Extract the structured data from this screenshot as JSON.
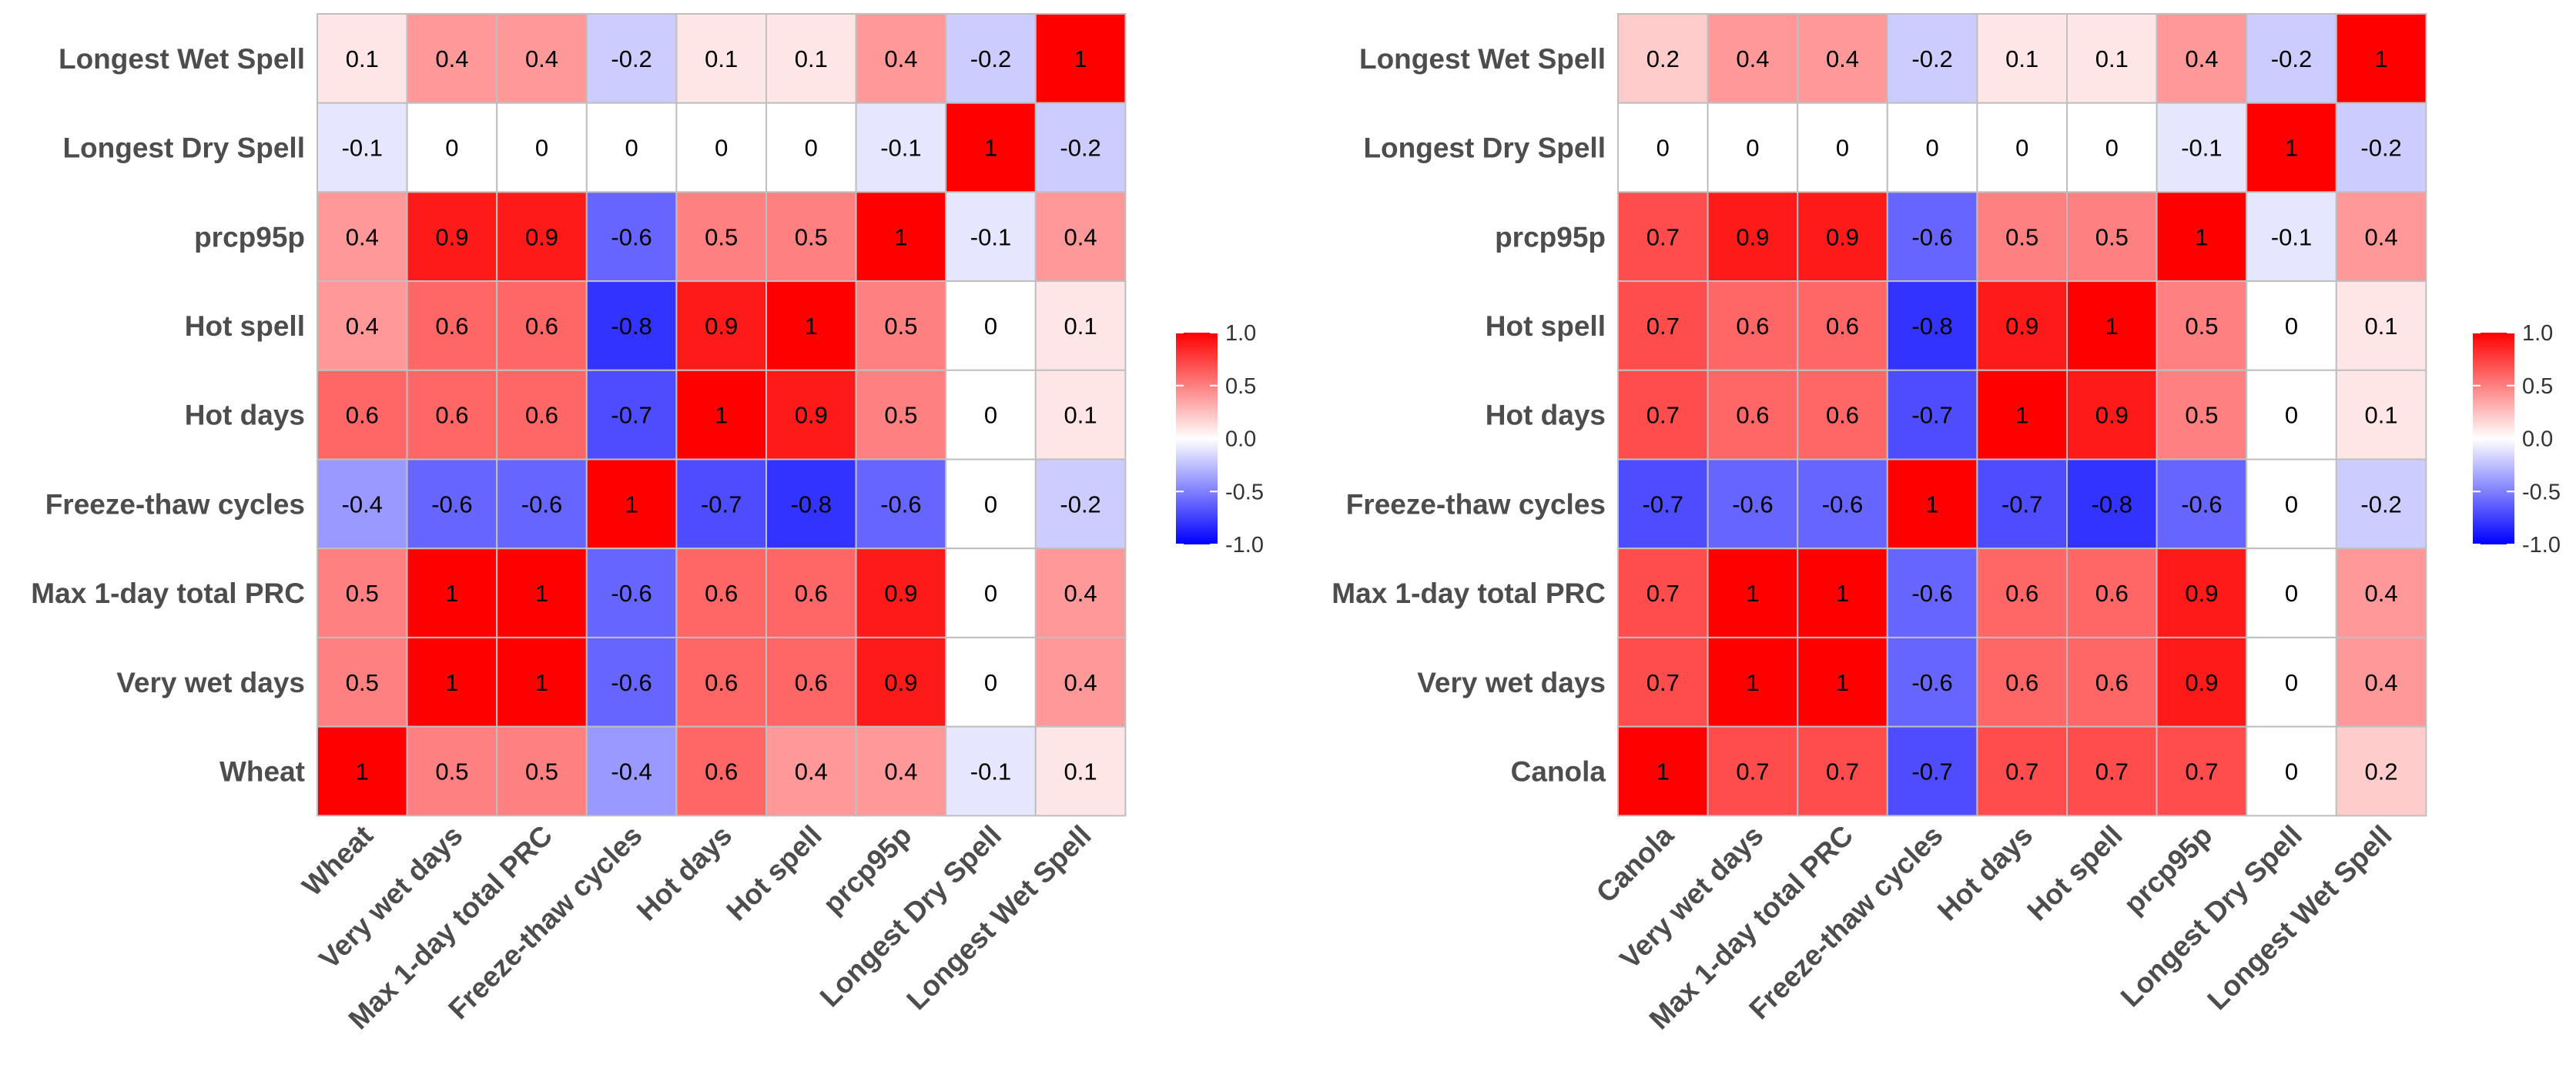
{
  "chart_data": [
    {
      "type": "heatmap",
      "title": "",
      "row_labels_top_to_bottom": [
        "Longest Wet Spell",
        "Longest Dry Spell",
        "prcp95p",
        "Hot spell",
        "Hot days",
        "Freeze-thaw cycles",
        "Max 1-day total PRC",
        "Very wet days",
        "Wheat"
      ],
      "col_labels": [
        "Wheat",
        "Very wet days",
        "Max 1-day total PRC",
        "Freeze-thaw cycles",
        "Hot days",
        "Hot spell",
        "prcp95p",
        "Longest Dry Spell",
        "Longest Wet Spell"
      ],
      "values": [
        [
          "0.1",
          "0.4",
          "0.4",
          "-0.2",
          "0.1",
          "0.1",
          "0.4",
          "-0.2",
          "1"
        ],
        [
          "-0.1",
          "0",
          "0",
          "0",
          "0",
          "0",
          "-0.1",
          "1",
          "-0.2"
        ],
        [
          "0.4",
          "0.9",
          "0.9",
          "-0.6",
          "0.5",
          "0.5",
          "1",
          "-0.1",
          "0.4"
        ],
        [
          "0.4",
          "0.6",
          "0.6",
          "-0.8",
          "0.9",
          "1",
          "0.5",
          "0",
          "0.1"
        ],
        [
          "0.6",
          "0.6",
          "0.6",
          "-0.7",
          "1",
          "0.9",
          "0.5",
          "0",
          "0.1"
        ],
        [
          "-0.4",
          "-0.6",
          "-0.6",
          "1",
          "-0.7",
          "-0.8",
          "-0.6",
          "0",
          "-0.2"
        ],
        [
          "0.5",
          "1",
          "1",
          "-0.6",
          "0.6",
          "0.6",
          "0.9",
          "0",
          "0.4"
        ],
        [
          "0.5",
          "1",
          "1",
          "-0.6",
          "0.6",
          "0.6",
          "0.9",
          "0",
          "0.4"
        ],
        [
          "1",
          "0.5",
          "0.5",
          "-0.4",
          "0.6",
          "0.4",
          "0.4",
          "-0.1",
          "0.1"
        ]
      ],
      "legend": {
        "ticks": [
          "1.0",
          "0.5",
          "0.0",
          "-0.5",
          "-1.0"
        ],
        "range": [
          -1,
          1
        ],
        "position": "right"
      }
    },
    {
      "type": "heatmap",
      "title": "",
      "row_labels_top_to_bottom": [
        "Longest Wet Spell",
        "Longest Dry Spell",
        "prcp95p",
        "Hot spell",
        "Hot days",
        "Freeze-thaw cycles",
        "Max 1-day total PRC",
        "Very wet days",
        "Canola"
      ],
      "col_labels": [
        "Canola",
        "Very wet days",
        "Max 1-day total PRC",
        "Freeze-thaw cycles",
        "Hot days",
        "Hot spell",
        "prcp95p",
        "Longest Dry Spell",
        "Longest Wet Spell"
      ],
      "values": [
        [
          "0.2",
          "0.4",
          "0.4",
          "-0.2",
          "0.1",
          "0.1",
          "0.4",
          "-0.2",
          "1"
        ],
        [
          "0",
          "0",
          "0",
          "0",
          "0",
          "0",
          "-0.1",
          "1",
          "-0.2"
        ],
        [
          "0.7",
          "0.9",
          "0.9",
          "-0.6",
          "0.5",
          "0.5",
          "1",
          "-0.1",
          "0.4"
        ],
        [
          "0.7",
          "0.6",
          "0.6",
          "-0.8",
          "0.9",
          "1",
          "0.5",
          "0",
          "0.1"
        ],
        [
          "0.7",
          "0.6",
          "0.6",
          "-0.7",
          "1",
          "0.9",
          "0.5",
          "0",
          "0.1"
        ],
        [
          "-0.7",
          "-0.6",
          "-0.6",
          "1",
          "-0.7",
          "-0.8",
          "-0.6",
          "0",
          "-0.2"
        ],
        [
          "0.7",
          "1",
          "1",
          "-0.6",
          "0.6",
          "0.6",
          "0.9",
          "0",
          "0.4"
        ],
        [
          "0.7",
          "1",
          "1",
          "-0.6",
          "0.6",
          "0.6",
          "0.9",
          "0",
          "0.4"
        ],
        [
          "1",
          "0.7",
          "0.7",
          "-0.7",
          "0.7",
          "0.7",
          "0.7",
          "0",
          "0.2"
        ]
      ],
      "legend": {
        "ticks": [
          "1.0",
          "0.5",
          "0.0",
          "-0.5",
          "-1.0"
        ],
        "range": [
          -1,
          1
        ],
        "position": "right"
      }
    }
  ],
  "colors": {
    "high": "#ff0000",
    "mid": "#ffffff",
    "low": "#0000ff",
    "grid": "#bfbfbf",
    "text": "#000000",
    "axis_text": "#4d4d4d"
  }
}
